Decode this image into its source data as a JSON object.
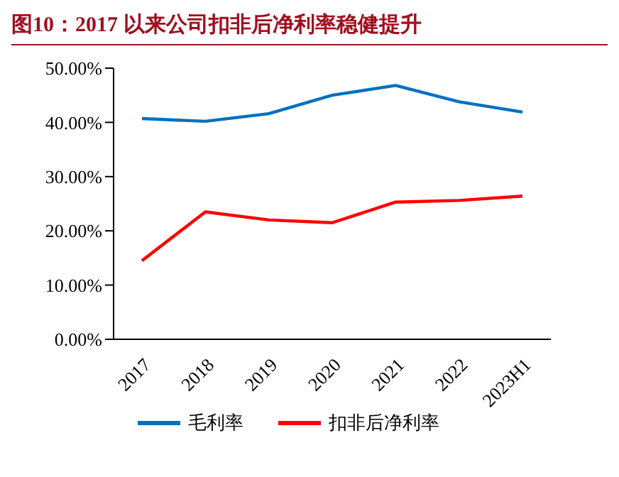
{
  "chart_data": {
    "type": "line",
    "title": "图10：2017 以来公司扣非后净利率稳健提升",
    "categories": [
      "2017",
      "2018",
      "2019",
      "2020",
      "2021",
      "2022",
      "2023H1"
    ],
    "series": [
      {
        "name": "毛利率",
        "color": "#0070c0",
        "values": [
          40.7,
          40.2,
          41.6,
          45.0,
          46.8,
          43.8,
          41.9
        ]
      },
      {
        "name": "扣非后净利率",
        "color": "#ff0000",
        "values": [
          14.5,
          23.5,
          22.0,
          21.5,
          25.3,
          25.6,
          26.4
        ]
      }
    ],
    "ylim": [
      0,
      50
    ],
    "yticks": [
      {
        "value": 0,
        "label": "0.00%"
      },
      {
        "value": 10,
        "label": "10.00%"
      },
      {
        "value": 20,
        "label": "20.00%"
      },
      {
        "value": 30,
        "label": "30.00%"
      },
      {
        "value": 40,
        "label": "40.00%"
      },
      {
        "value": 50,
        "label": "50.00%"
      }
    ],
    "grid": false,
    "legend": "bottom",
    "marker": "none",
    "line_style": "solid"
  }
}
